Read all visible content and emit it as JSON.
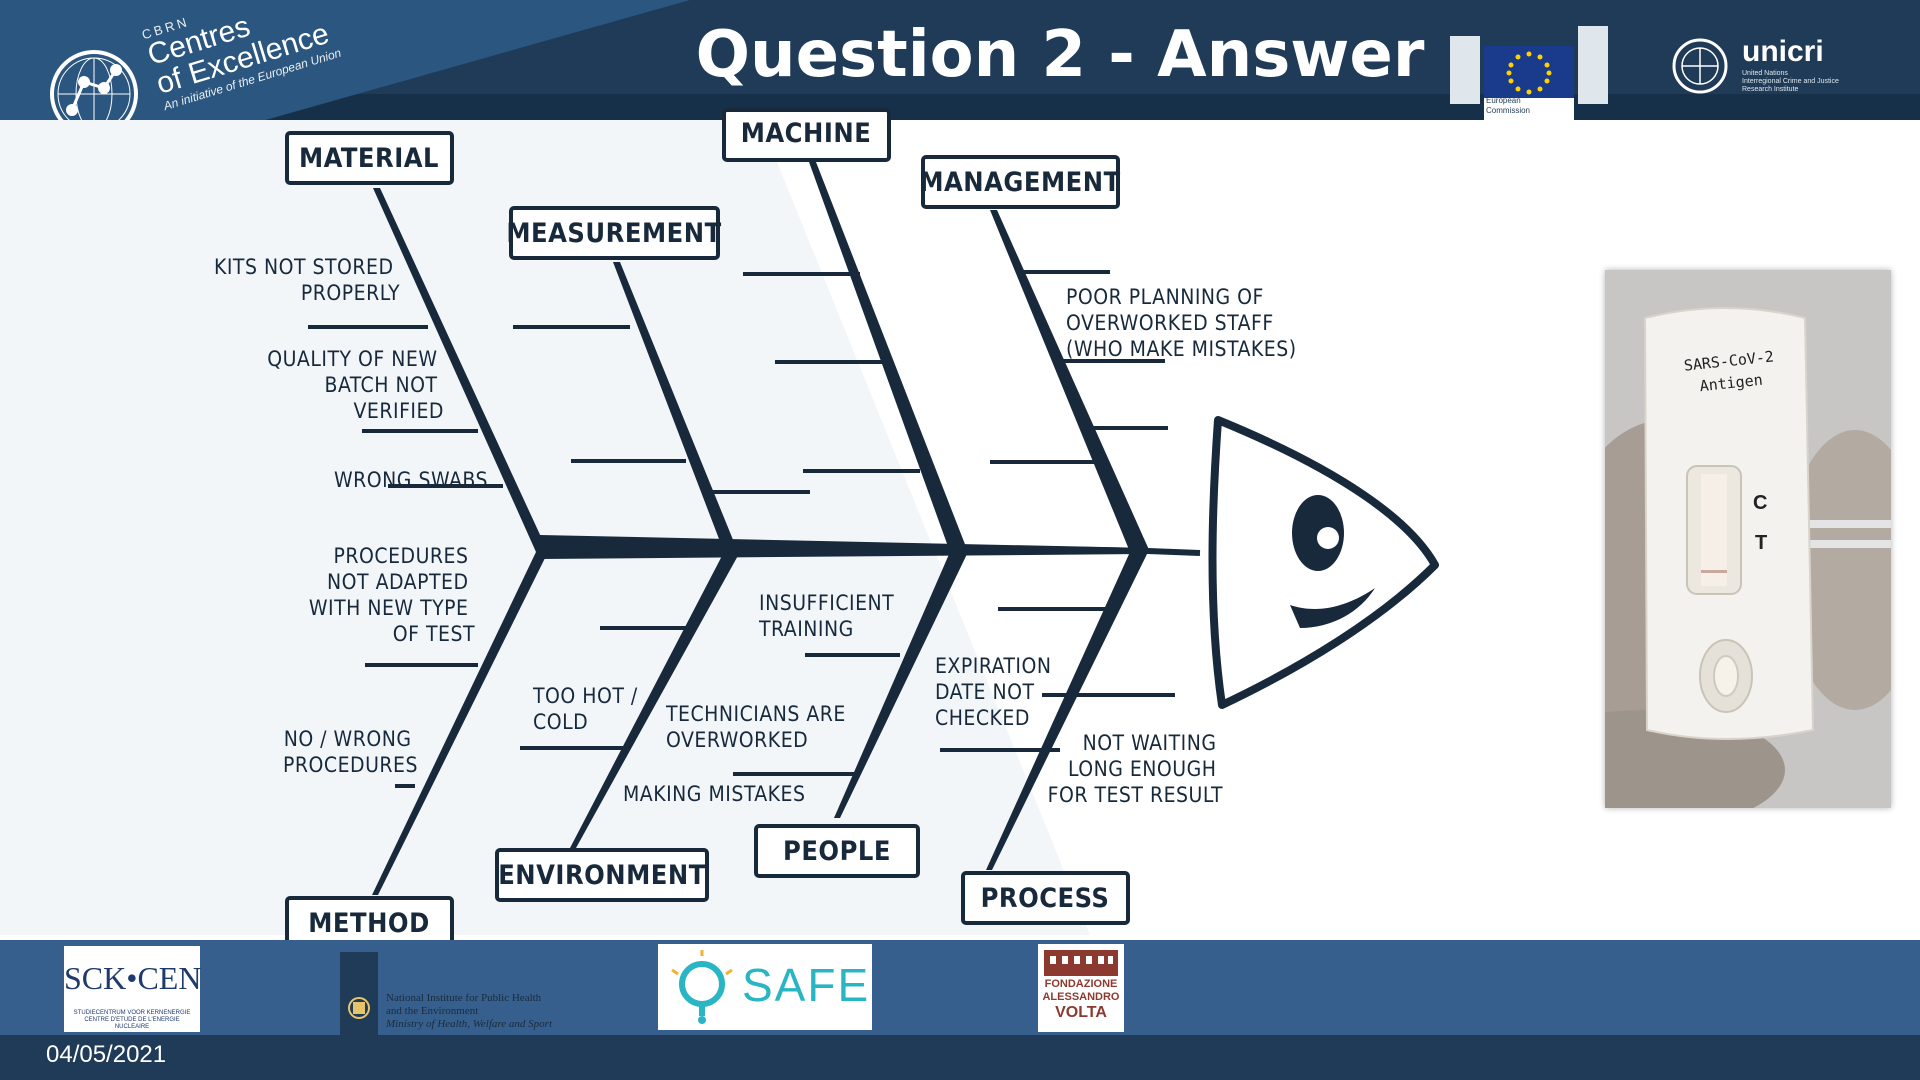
{
  "slide": {
    "title": "Question 2 - Answer",
    "date": "04/05/2021"
  },
  "brand": {
    "line0": "CBRN",
    "line1": "Centres",
    "line2": "of Excellence",
    "line3": "An initiative of the European Union"
  },
  "eu_logo": {
    "caption_line1": "European",
    "caption_line2": "Commission"
  },
  "unicri": {
    "name": "unicri",
    "sub1": "United Nations",
    "sub2": "Interregional Crime and Justice",
    "sub3": "Research Institute"
  },
  "fishbone": {
    "categories": {
      "material": "MATERIAL",
      "machine": "MACHINE",
      "management": "MANAGEMENT",
      "measurement": "MEASUREMENT",
      "method": "METHOD",
      "environment": "ENVIRONMENT",
      "people": "PEOPLE",
      "process": "PROCESS"
    },
    "causes": {
      "material": [
        {
          "lines": [
            "KITS NOT STORED",
            "PROPERLY"
          ]
        },
        {
          "lines": [
            "QUALITY OF NEW",
            "BATCH NOT",
            "VERIFIED"
          ]
        },
        {
          "lines": [
            "WRONG SWABS"
          ]
        }
      ],
      "management": [
        {
          "lines": [
            "POOR PLANNING OF",
            "OVERWORKED STAFF",
            "(WHO MAKE MISTAKES)"
          ]
        }
      ],
      "method": [
        {
          "lines": [
            "PROCEDURES",
            "NOT ADAPTED",
            "WITH NEW TYPE",
            "OF TEST"
          ]
        },
        {
          "lines": [
            "NO / WRONG",
            "PROCEDURES"
          ]
        }
      ],
      "environment": [
        {
          "lines": [
            "TOO HOT /",
            "COLD"
          ]
        }
      ],
      "people": [
        {
          "lines": [
            "INSUFFICIENT",
            "TRAINING"
          ]
        },
        {
          "lines": [
            "TECHNICIANS ARE",
            "OVERWORKED"
          ]
        },
        {
          "lines": [
            "MAKING MISTAKES"
          ]
        }
      ],
      "process": [
        {
          "lines": [
            "EXPIRATION",
            "DATE NOT",
            "CHECKED"
          ]
        },
        {
          "lines": [
            "NOT WAITING",
            "LONG ENOUGH",
            "FOR TEST RESULT"
          ]
        }
      ]
    }
  },
  "photo": {
    "label_line1": "SARS-CoV-2",
    "label_line2": "Antigen",
    "c_mark": "C",
    "t_mark": "T"
  },
  "footer_logos": {
    "sck": {
      "name": "SCK•CEN",
      "sub1": "STUDIECENTRUM VOOR KERNENERGIE",
      "sub2": "CENTRE D'ETUDE DE L'ENERGIE NUCLEAIRE"
    },
    "rivm": {
      "line1": "National Institute for Public Health",
      "line2": "and the Environment",
      "line3": "Ministry of Health, Welfare and Sport"
    },
    "safe": {
      "name": "SAFE"
    },
    "volta": {
      "line1": "FONDAZIONE",
      "line2": "ALESSANDRO",
      "line3": "VOLTA"
    }
  },
  "colors": {
    "navy": "#1f3b57",
    "footer_blue": "#365f8d",
    "ink": "#17293b",
    "safe_teal": "#2ab5c4"
  }
}
